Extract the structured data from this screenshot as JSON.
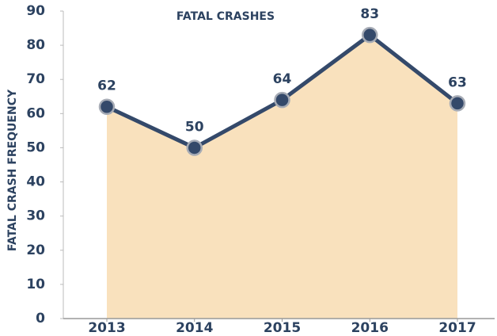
{
  "chart_data": {
    "type": "line",
    "title": "FATAL CRASHES",
    "y_label": "FATAL CRASH FREQUENCY",
    "categories": [
      "2013",
      "2014",
      "2015",
      "2016",
      "2017"
    ],
    "values": [
      62,
      50,
      64,
      83,
      63
    ],
    "color": "#34496a",
    "area_color": "#f9e1bd",
    "ylim": [
      0,
      90
    ],
    "yticks": [
      0,
      10,
      20,
      30,
      40,
      50,
      60,
      70,
      80,
      90
    ]
  }
}
